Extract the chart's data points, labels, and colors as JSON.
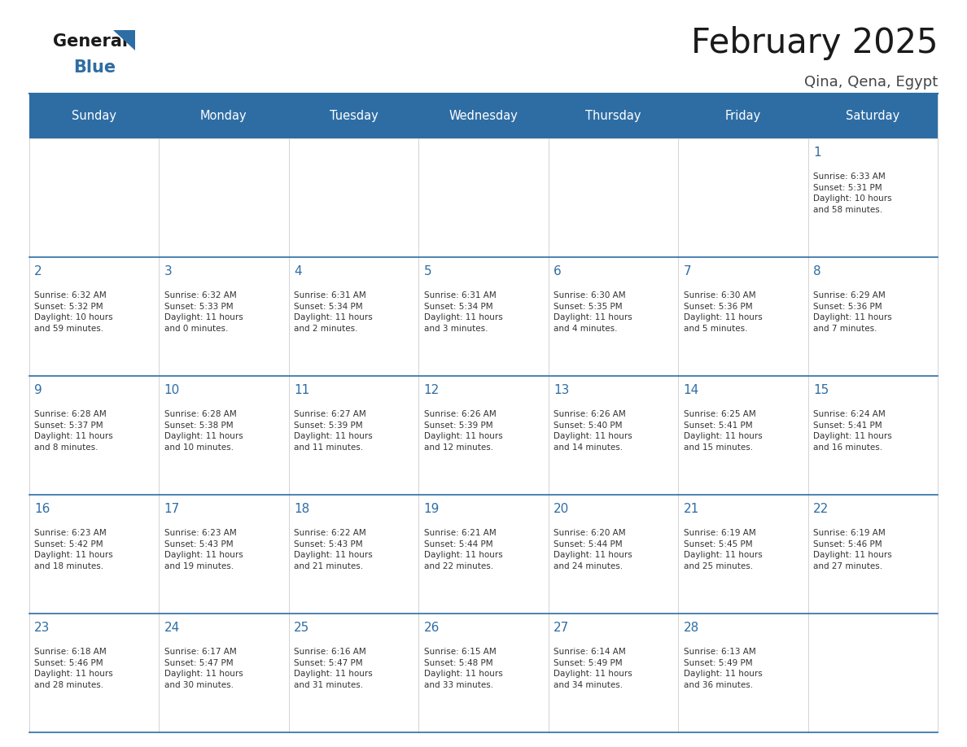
{
  "title": "February 2025",
  "subtitle": "Qina, Qena, Egypt",
  "days_of_week": [
    "Sunday",
    "Monday",
    "Tuesday",
    "Wednesday",
    "Thursday",
    "Friday",
    "Saturday"
  ],
  "header_bg": "#2E6DA4",
  "header_text": "#FFFFFF",
  "day_number_color": "#2E6DA4",
  "text_color": "#333333",
  "border_color": "#CCCCCC",
  "row_border_color": "#2E6DA4",
  "calendar_data": [
    [
      {
        "day": null,
        "info": ""
      },
      {
        "day": null,
        "info": ""
      },
      {
        "day": null,
        "info": ""
      },
      {
        "day": null,
        "info": ""
      },
      {
        "day": null,
        "info": ""
      },
      {
        "day": null,
        "info": ""
      },
      {
        "day": 1,
        "info": "Sunrise: 6:33 AM\nSunset: 5:31 PM\nDaylight: 10 hours\nand 58 minutes."
      }
    ],
    [
      {
        "day": 2,
        "info": "Sunrise: 6:32 AM\nSunset: 5:32 PM\nDaylight: 10 hours\nand 59 minutes."
      },
      {
        "day": 3,
        "info": "Sunrise: 6:32 AM\nSunset: 5:33 PM\nDaylight: 11 hours\nand 0 minutes."
      },
      {
        "day": 4,
        "info": "Sunrise: 6:31 AM\nSunset: 5:34 PM\nDaylight: 11 hours\nand 2 minutes."
      },
      {
        "day": 5,
        "info": "Sunrise: 6:31 AM\nSunset: 5:34 PM\nDaylight: 11 hours\nand 3 minutes."
      },
      {
        "day": 6,
        "info": "Sunrise: 6:30 AM\nSunset: 5:35 PM\nDaylight: 11 hours\nand 4 minutes."
      },
      {
        "day": 7,
        "info": "Sunrise: 6:30 AM\nSunset: 5:36 PM\nDaylight: 11 hours\nand 5 minutes."
      },
      {
        "day": 8,
        "info": "Sunrise: 6:29 AM\nSunset: 5:36 PM\nDaylight: 11 hours\nand 7 minutes."
      }
    ],
    [
      {
        "day": 9,
        "info": "Sunrise: 6:28 AM\nSunset: 5:37 PM\nDaylight: 11 hours\nand 8 minutes."
      },
      {
        "day": 10,
        "info": "Sunrise: 6:28 AM\nSunset: 5:38 PM\nDaylight: 11 hours\nand 10 minutes."
      },
      {
        "day": 11,
        "info": "Sunrise: 6:27 AM\nSunset: 5:39 PM\nDaylight: 11 hours\nand 11 minutes."
      },
      {
        "day": 12,
        "info": "Sunrise: 6:26 AM\nSunset: 5:39 PM\nDaylight: 11 hours\nand 12 minutes."
      },
      {
        "day": 13,
        "info": "Sunrise: 6:26 AM\nSunset: 5:40 PM\nDaylight: 11 hours\nand 14 minutes."
      },
      {
        "day": 14,
        "info": "Sunrise: 6:25 AM\nSunset: 5:41 PM\nDaylight: 11 hours\nand 15 minutes."
      },
      {
        "day": 15,
        "info": "Sunrise: 6:24 AM\nSunset: 5:41 PM\nDaylight: 11 hours\nand 16 minutes."
      }
    ],
    [
      {
        "day": 16,
        "info": "Sunrise: 6:23 AM\nSunset: 5:42 PM\nDaylight: 11 hours\nand 18 minutes."
      },
      {
        "day": 17,
        "info": "Sunrise: 6:23 AM\nSunset: 5:43 PM\nDaylight: 11 hours\nand 19 minutes."
      },
      {
        "day": 18,
        "info": "Sunrise: 6:22 AM\nSunset: 5:43 PM\nDaylight: 11 hours\nand 21 minutes."
      },
      {
        "day": 19,
        "info": "Sunrise: 6:21 AM\nSunset: 5:44 PM\nDaylight: 11 hours\nand 22 minutes."
      },
      {
        "day": 20,
        "info": "Sunrise: 6:20 AM\nSunset: 5:44 PM\nDaylight: 11 hours\nand 24 minutes."
      },
      {
        "day": 21,
        "info": "Sunrise: 6:19 AM\nSunset: 5:45 PM\nDaylight: 11 hours\nand 25 minutes."
      },
      {
        "day": 22,
        "info": "Sunrise: 6:19 AM\nSunset: 5:46 PM\nDaylight: 11 hours\nand 27 minutes."
      }
    ],
    [
      {
        "day": 23,
        "info": "Sunrise: 6:18 AM\nSunset: 5:46 PM\nDaylight: 11 hours\nand 28 minutes."
      },
      {
        "day": 24,
        "info": "Sunrise: 6:17 AM\nSunset: 5:47 PM\nDaylight: 11 hours\nand 30 minutes."
      },
      {
        "day": 25,
        "info": "Sunrise: 6:16 AM\nSunset: 5:47 PM\nDaylight: 11 hours\nand 31 minutes."
      },
      {
        "day": 26,
        "info": "Sunrise: 6:15 AM\nSunset: 5:48 PM\nDaylight: 11 hours\nand 33 minutes."
      },
      {
        "day": 27,
        "info": "Sunrise: 6:14 AM\nSunset: 5:49 PM\nDaylight: 11 hours\nand 34 minutes."
      },
      {
        "day": 28,
        "info": "Sunrise: 6:13 AM\nSunset: 5:49 PM\nDaylight: 11 hours\nand 36 minutes."
      },
      {
        "day": null,
        "info": ""
      }
    ]
  ],
  "logo_general_color": "#1a1a1a",
  "logo_blue_color": "#2E6DA4",
  "title_color": "#1a1a1a",
  "subtitle_color": "#444444"
}
